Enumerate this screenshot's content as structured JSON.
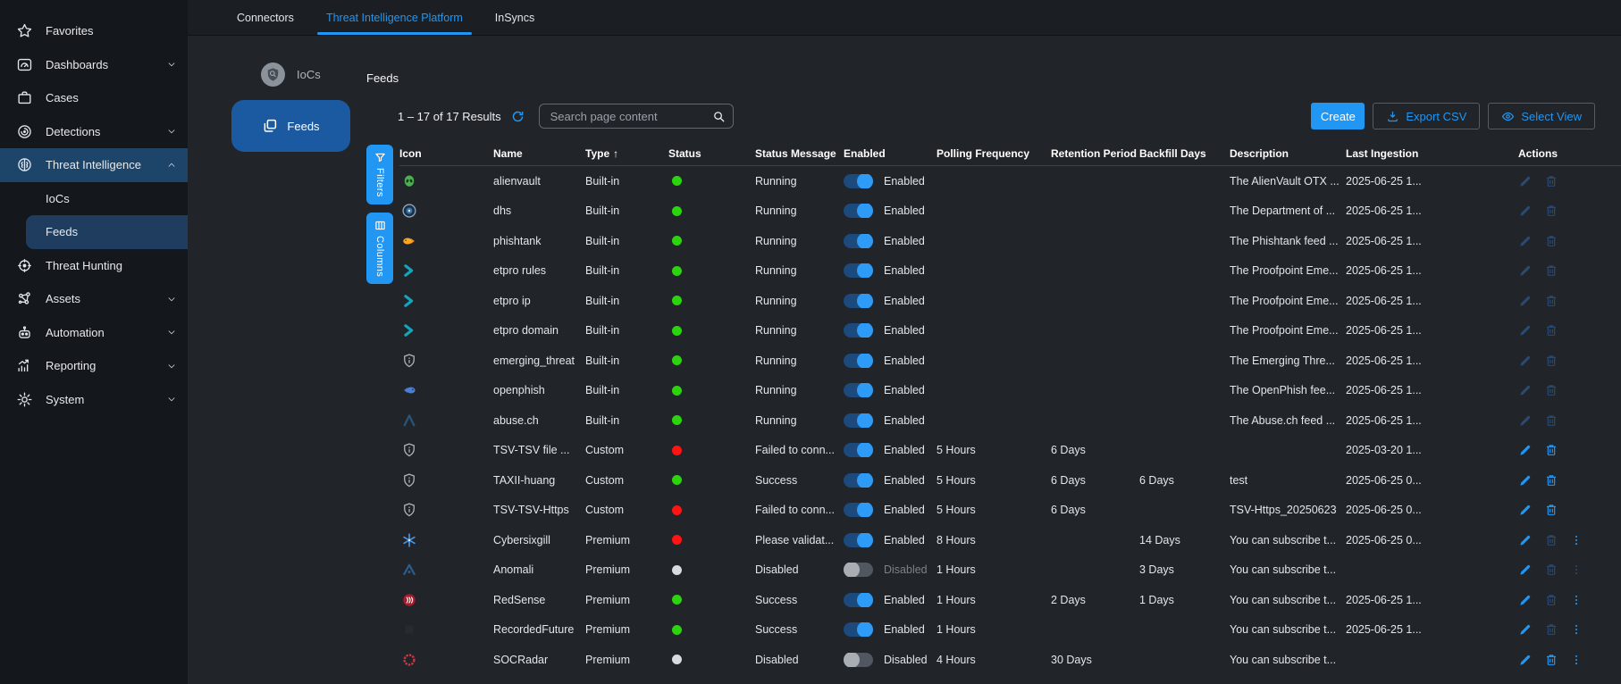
{
  "colors": {
    "accent": "#2196f3",
    "status_green": "#2bd40e",
    "status_red": "#ff1414",
    "status_gray": "#d9dcde",
    "action_bright": "#2196f3",
    "action_dim": "#2a4a72"
  },
  "sidebar": {
    "items": [
      {
        "label": "Favorites",
        "icon": "star"
      },
      {
        "label": "Dashboards",
        "icon": "dashboard",
        "chevron": "down"
      },
      {
        "label": "Cases",
        "icon": "briefcase"
      },
      {
        "label": "Detections",
        "icon": "detections",
        "chevron": "down"
      },
      {
        "label": "Threat Intelligence",
        "icon": "brain",
        "chevron": "up",
        "active": true
      },
      {
        "label": "IoCs",
        "sub": true
      },
      {
        "label": "Feeds",
        "sub": true,
        "selected": true
      },
      {
        "label": "Threat Hunting",
        "icon": "crosshair"
      },
      {
        "label": "Assets",
        "icon": "network",
        "chevron": "down"
      },
      {
        "label": "Automation",
        "icon": "robot",
        "chevron": "down"
      },
      {
        "label": "Reporting",
        "icon": "chart",
        "chevron": "down"
      },
      {
        "label": "System",
        "icon": "gear",
        "chevron": "down"
      }
    ]
  },
  "tabs": [
    {
      "label": "Connectors"
    },
    {
      "label": "Threat Intelligence Platform",
      "active": true
    },
    {
      "label": "InSyncs"
    }
  ],
  "subnav": {
    "iocs_label": "IoCs",
    "feeds_label": "Feeds"
  },
  "page": {
    "title": "Feeds"
  },
  "toolbar": {
    "results_text": "1 – 17 of 17 Results",
    "search_placeholder": "Search page content",
    "create_label": "Create",
    "export_label": "Export CSV",
    "select_view_label": "Select View"
  },
  "side_buttons": {
    "filters_label": "Filters",
    "columns_label": "Columns"
  },
  "table": {
    "columns": [
      "Icon",
      "Name",
      "Type",
      "Status",
      "Status Message",
      "Enabled",
      "Polling Frequency",
      "Retention Period",
      "Backfill Days",
      "Description",
      "Last Ingestion",
      "Actions"
    ],
    "sort_column": "Type",
    "sort_direction": "asc",
    "rows": [
      {
        "icon": "alienvault",
        "name": "alienvault",
        "type": "Built-in",
        "status": "green",
        "status_message": "Running",
        "enabled": true,
        "enabled_label": "Enabled",
        "enabled_label_dim": false,
        "polling": "",
        "retention": "",
        "backfill": "",
        "description": "The AlienVault OTX ...",
        "last_ingestion": "2025-06-25 1...",
        "actions": {
          "edit": "dim",
          "delete": "dim",
          "menu": "none"
        }
      },
      {
        "icon": "dhs",
        "name": "dhs",
        "type": "Built-in",
        "status": "green",
        "status_message": "Running",
        "enabled": true,
        "enabled_label": "Enabled",
        "enabled_label_dim": false,
        "polling": "",
        "retention": "",
        "backfill": "",
        "description": "The Department of ...",
        "last_ingestion": "2025-06-25 1...",
        "actions": {
          "edit": "dim",
          "delete": "dim",
          "menu": "none"
        }
      },
      {
        "icon": "phishtank",
        "name": "phishtank",
        "type": "Built-in",
        "status": "green",
        "status_message": "Running",
        "enabled": true,
        "enabled_label": "Enabled",
        "enabled_label_dim": false,
        "polling": "",
        "retention": "",
        "backfill": "",
        "description": "The Phishtank feed ...",
        "last_ingestion": "2025-06-25 1...",
        "actions": {
          "edit": "dim",
          "delete": "dim",
          "menu": "none"
        }
      },
      {
        "icon": "proofpoint",
        "name": "etpro rules",
        "type": "Built-in",
        "status": "green",
        "status_message": "Running",
        "enabled": true,
        "enabled_label": "Enabled",
        "enabled_label_dim": false,
        "polling": "",
        "retention": "",
        "backfill": "",
        "description": "The Proofpoint Eme...",
        "last_ingestion": "2025-06-25 1...",
        "actions": {
          "edit": "dim",
          "delete": "dim",
          "menu": "none"
        }
      },
      {
        "icon": "proofpoint",
        "name": "etpro ip",
        "type": "Built-in",
        "status": "green",
        "status_message": "Running",
        "enabled": true,
        "enabled_label": "Enabled",
        "enabled_label_dim": false,
        "polling": "",
        "retention": "",
        "backfill": "",
        "description": "The Proofpoint Eme...",
        "last_ingestion": "2025-06-25 1...",
        "actions": {
          "edit": "dim",
          "delete": "dim",
          "menu": "none"
        }
      },
      {
        "icon": "proofpoint",
        "name": "etpro domain",
        "type": "Built-in",
        "status": "green",
        "status_message": "Running",
        "enabled": true,
        "enabled_label": "Enabled",
        "enabled_label_dim": false,
        "polling": "",
        "retention": "",
        "backfill": "",
        "description": "The Proofpoint Eme...",
        "last_ingestion": "2025-06-25 1...",
        "actions": {
          "edit": "dim",
          "delete": "dim",
          "menu": "none"
        }
      },
      {
        "icon": "shield",
        "name": "emerging_threat",
        "type": "Built-in",
        "status": "green",
        "status_message": "Running",
        "enabled": true,
        "enabled_label": "Enabled",
        "enabled_label_dim": false,
        "polling": "",
        "retention": "",
        "backfill": "",
        "description": "The Emerging Thre...",
        "last_ingestion": "2025-06-25 1...",
        "actions": {
          "edit": "dim",
          "delete": "dim",
          "menu": "none"
        }
      },
      {
        "icon": "openphish",
        "name": "openphish",
        "type": "Built-in",
        "status": "green",
        "status_message": "Running",
        "enabled": true,
        "enabled_label": "Enabled",
        "enabled_label_dim": false,
        "polling": "",
        "retention": "",
        "backfill": "",
        "description": "The OpenPhish fee...",
        "last_ingestion": "2025-06-25 1...",
        "actions": {
          "edit": "dim",
          "delete": "dim",
          "menu": "none"
        }
      },
      {
        "icon": "abusech",
        "name": "abuse.ch",
        "type": "Built-in",
        "status": "green",
        "status_message": "Running",
        "enabled": true,
        "enabled_label": "Enabled",
        "enabled_label_dim": false,
        "polling": "",
        "retention": "",
        "backfill": "",
        "description": "The Abuse.ch feed ...",
        "last_ingestion": "2025-06-25 1...",
        "actions": {
          "edit": "dim",
          "delete": "dim",
          "menu": "none"
        }
      },
      {
        "icon": "shield",
        "name": "TSV-TSV file ...",
        "type": "Custom",
        "status": "red",
        "status_message": "Failed to conn...",
        "enabled": true,
        "enabled_label": "Enabled",
        "enabled_label_dim": false,
        "polling": "5 Hours",
        "retention": "6 Days",
        "backfill": "",
        "description": "",
        "last_ingestion": "2025-03-20 1...",
        "actions": {
          "edit": "bright",
          "delete": "bright",
          "menu": "none"
        }
      },
      {
        "icon": "shield",
        "name": "TAXII-huang",
        "type": "Custom",
        "status": "green",
        "status_message": "Success",
        "enabled": true,
        "enabled_label": "Enabled",
        "enabled_label_dim": false,
        "polling": "5 Hours",
        "retention": "6 Days",
        "backfill": "6 Days",
        "description": "test",
        "last_ingestion": "2025-06-25 0...",
        "actions": {
          "edit": "bright",
          "delete": "bright",
          "menu": "none"
        }
      },
      {
        "icon": "shield",
        "name": "TSV-TSV-Https",
        "type": "Custom",
        "status": "red",
        "status_message": "Failed to conn...",
        "enabled": true,
        "enabled_label": "Enabled",
        "enabled_label_dim": false,
        "polling": "5 Hours",
        "retention": "6 Days",
        "backfill": "",
        "description": "TSV-Https_20250623",
        "last_ingestion": "2025-06-25 0...",
        "actions": {
          "edit": "bright",
          "delete": "bright",
          "menu": "none"
        }
      },
      {
        "icon": "cybersixgill",
        "name": "Cybersixgill",
        "type": "Premium",
        "status": "red",
        "status_message": "Please validat...",
        "enabled": true,
        "enabled_label": "Enabled",
        "enabled_label_dim": false,
        "polling": "8 Hours",
        "retention": "",
        "backfill": "14 Days",
        "description": "You can subscribe t...",
        "last_ingestion": "2025-06-25 0...",
        "actions": {
          "edit": "bright",
          "delete": "dim",
          "menu": "bright"
        }
      },
      {
        "icon": "anomali",
        "name": "Anomali",
        "type": "Premium",
        "status": "gray",
        "status_message": "Disabled",
        "enabled": false,
        "enabled_label": "Disabled",
        "enabled_label_dim": true,
        "polling": "1 Hours",
        "retention": "",
        "backfill": "3 Days",
        "description": "You can subscribe t...",
        "last_ingestion": "",
        "actions": {
          "edit": "bright",
          "delete": "dim",
          "menu": "dim"
        }
      },
      {
        "icon": "redsense",
        "name": "RedSense",
        "type": "Premium",
        "status": "green",
        "status_message": "Success",
        "enabled": true,
        "enabled_label": "Enabled",
        "enabled_label_dim": false,
        "polling": "1 Hours",
        "retention": "2 Days",
        "backfill": "1 Days",
        "description": "You can subscribe t...",
        "last_ingestion": "2025-06-25 1...",
        "actions": {
          "edit": "bright",
          "delete": "dim",
          "menu": "bright"
        }
      },
      {
        "icon": "recordedfuture",
        "name": "RecordedFuture",
        "type": "Premium",
        "status": "green",
        "status_message": "Success",
        "enabled": true,
        "enabled_label": "Enabled",
        "enabled_label_dim": false,
        "polling": "1 Hours",
        "retention": "",
        "backfill": "",
        "description": "You can subscribe t...",
        "last_ingestion": "2025-06-25 1...",
        "actions": {
          "edit": "bright",
          "delete": "dim",
          "menu": "bright"
        }
      },
      {
        "icon": "socradar",
        "name": "SOCRadar",
        "type": "Premium",
        "status": "gray",
        "status_message": "Disabled",
        "enabled": false,
        "enabled_label": "Disabled",
        "enabled_label_dim": false,
        "polling": "4 Hours",
        "retention": "30 Days",
        "backfill": "",
        "description": "You can subscribe t...",
        "last_ingestion": "",
        "actions": {
          "edit": "bright",
          "delete": "bright",
          "menu": "bright"
        }
      }
    ]
  }
}
